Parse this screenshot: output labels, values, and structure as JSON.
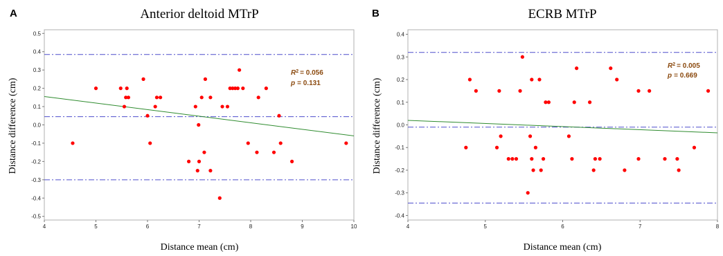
{
  "colors": {
    "points": "#ff0000",
    "fit_line": "#2e8b2e",
    "ref_lines": "#4d4dcc",
    "stat_text": "#8b4a0f",
    "frame": "#b0b0b0"
  },
  "chart_data": [
    {
      "type": "scatter",
      "panel": "A",
      "title": "Anterior deltoid MTrP",
      "xlabel": "Distance mean (cm)",
      "ylabel": "Distance difference (cm)",
      "xlim": [
        4,
        10
      ],
      "ylim": [
        -0.52,
        0.52
      ],
      "xticks": [
        "4",
        "5",
        "6",
        "7",
        "8",
        "9",
        "10"
      ],
      "yticks": [
        "0.5",
        "0.4",
        "0.3",
        "0.2",
        "0.1",
        "0.0",
        "-0.1",
        "-0.2",
        "-0.3",
        "-0.4",
        "-0.5"
      ],
      "grid": false,
      "reference_lines": [
        0.385,
        0.045,
        -0.3
      ],
      "fit_line": {
        "x": [
          4,
          10
        ],
        "y": [
          0.155,
          -0.06
        ]
      },
      "stats": {
        "r2_value": "= 0.056",
        "p_value": "= 0.131"
      },
      "points": [
        [
          4.55,
          -0.1
        ],
        [
          5.0,
          0.2
        ],
        [
          5.48,
          0.2
        ],
        [
          5.55,
          0.1
        ],
        [
          5.58,
          0.15
        ],
        [
          5.6,
          0.2
        ],
        [
          5.63,
          0.15
        ],
        [
          5.92,
          0.25
        ],
        [
          6.0,
          0.05
        ],
        [
          6.05,
          -0.1
        ],
        [
          6.15,
          0.1
        ],
        [
          6.18,
          0.15
        ],
        [
          6.25,
          0.15
        ],
        [
          6.8,
          -0.2
        ],
        [
          6.93,
          0.1
        ],
        [
          6.97,
          -0.25
        ],
        [
          6.99,
          0.0
        ],
        [
          7.0,
          -0.2
        ],
        [
          7.05,
          0.15
        ],
        [
          7.1,
          -0.15
        ],
        [
          7.12,
          0.25
        ],
        [
          7.22,
          0.15
        ],
        [
          7.22,
          -0.25
        ],
        [
          7.4,
          -0.4
        ],
        [
          7.45,
          0.1
        ],
        [
          7.55,
          0.1
        ],
        [
          7.6,
          0.2
        ],
        [
          7.65,
          0.2
        ],
        [
          7.7,
          0.2
        ],
        [
          7.75,
          0.2
        ],
        [
          7.78,
          0.3
        ],
        [
          7.85,
          0.2
        ],
        [
          7.95,
          -0.1
        ],
        [
          8.12,
          -0.15
        ],
        [
          8.15,
          0.15
        ],
        [
          8.3,
          0.2
        ],
        [
          8.45,
          -0.15
        ],
        [
          8.55,
          0.05
        ],
        [
          8.58,
          -0.1
        ],
        [
          8.8,
          -0.2
        ],
        [
          9.85,
          -0.1
        ]
      ]
    },
    {
      "type": "scatter",
      "panel": "B",
      "title": "ECRB MTrP",
      "xlabel": "Distance mean (cm)",
      "ylabel": "Distance difference (cm)",
      "xlim": [
        4,
        8
      ],
      "ylim": [
        -0.42,
        0.42
      ],
      "xticks": [
        "4",
        "5",
        "6",
        "7",
        "8"
      ],
      "yticks": [
        "0.4",
        "0.3",
        "0.2",
        "0.1",
        "0.0",
        "-0.1",
        "-0.2",
        "-0.3",
        "-0.4"
      ],
      "grid": false,
      "reference_lines": [
        0.32,
        -0.01,
        -0.345
      ],
      "fit_line": {
        "x": [
          4,
          8
        ],
        "y": [
          0.02,
          -0.035
        ]
      },
      "stats": {
        "r2_value": "= 0.005",
        "p_value": "= 0.669"
      },
      "points": [
        [
          4.75,
          -0.1
        ],
        [
          4.8,
          0.2
        ],
        [
          4.88,
          0.15
        ],
        [
          5.15,
          -0.1
        ],
        [
          5.18,
          0.15
        ],
        [
          5.2,
          -0.05
        ],
        [
          5.3,
          -0.15
        ],
        [
          5.35,
          -0.15
        ],
        [
          5.4,
          -0.15
        ],
        [
          5.45,
          0.15
        ],
        [
          5.48,
          0.3
        ],
        [
          5.55,
          -0.3
        ],
        [
          5.58,
          -0.05
        ],
        [
          5.6,
          -0.15
        ],
        [
          5.6,
          0.2
        ],
        [
          5.62,
          -0.2
        ],
        [
          5.65,
          -0.1
        ],
        [
          5.7,
          0.2
        ],
        [
          5.72,
          -0.2
        ],
        [
          5.75,
          -0.15
        ],
        [
          5.78,
          0.1
        ],
        [
          5.82,
          0.1
        ],
        [
          6.08,
          -0.05
        ],
        [
          6.12,
          -0.15
        ],
        [
          6.15,
          0.1
        ],
        [
          6.18,
          0.25
        ],
        [
          6.35,
          0.1
        ],
        [
          6.4,
          -0.2
        ],
        [
          6.42,
          -0.15
        ],
        [
          6.48,
          -0.15
        ],
        [
          6.62,
          0.25
        ],
        [
          6.7,
          0.2
        ],
        [
          6.8,
          -0.2
        ],
        [
          6.98,
          0.15
        ],
        [
          6.98,
          -0.15
        ],
        [
          7.12,
          0.15
        ],
        [
          7.32,
          -0.15
        ],
        [
          7.48,
          -0.15
        ],
        [
          7.5,
          -0.2
        ],
        [
          7.7,
          -0.1
        ],
        [
          7.88,
          0.15
        ]
      ]
    }
  ]
}
